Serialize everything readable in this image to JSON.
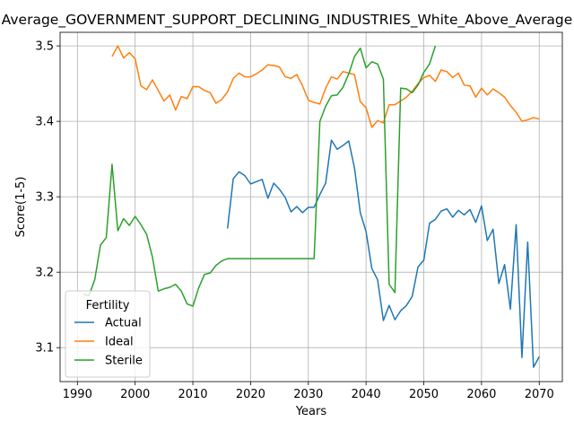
{
  "chart_data": {
    "type": "line",
    "title": "Average_GOVERNMENT_SUPPORT_DECLINING_INDUSTRIES_White_Above_Average",
    "xlabel": "Years",
    "ylabel": "Score(1-5)",
    "xlim": [
      1987,
      2074
    ],
    "ylim": [
      3.055,
      3.518
    ],
    "xticks": [
      1990,
      2000,
      2010,
      2020,
      2030,
      2040,
      2050,
      2060,
      2070
    ],
    "yticks": [
      3.1,
      3.2,
      3.3,
      3.4,
      3.5
    ],
    "grid": true,
    "legend": {
      "title": "Fertility",
      "placement": "lower-left"
    },
    "series": [
      {
        "name": "Actual",
        "color": "#1f77b4",
        "x": [
          2016,
          2017,
          2018,
          2019,
          2020,
          2021,
          2022,
          2023,
          2024,
          2025,
          2026,
          2027,
          2028,
          2029,
          2030,
          2031,
          2032,
          2033,
          2034,
          2035,
          2036,
          2037,
          2038,
          2039,
          2040,
          2041,
          2042,
          2043,
          2044,
          2045,
          2046,
          2047,
          2048,
          2049,
          2050,
          2051,
          2052,
          2053,
          2054,
          2055,
          2056,
          2057,
          2058,
          2059,
          2060,
          2061,
          2062,
          2063,
          2064,
          2065,
          2066,
          2067,
          2068,
          2069,
          2070
        ],
        "y": [
          3.258,
          3.324,
          3.333,
          3.328,
          3.317,
          3.32,
          3.323,
          3.298,
          3.318,
          3.31,
          3.299,
          3.28,
          3.287,
          3.279,
          3.286,
          3.286,
          3.303,
          3.318,
          3.375,
          3.363,
          3.368,
          3.374,
          3.338,
          3.279,
          3.254,
          3.205,
          3.19,
          3.136,
          3.156,
          3.137,
          3.149,
          3.156,
          3.168,
          3.207,
          3.216,
          3.265,
          3.27,
          3.281,
          3.284,
          3.273,
          3.282,
          3.276,
          3.283,
          3.266,
          3.288,
          3.242,
          3.257,
          3.185,
          3.21,
          3.151,
          3.263,
          3.087,
          3.24,
          3.074,
          3.088
        ]
      },
      {
        "name": "Ideal",
        "color": "#ff7f0e",
        "x": [
          1996,
          1997,
          1998,
          1999,
          2000,
          2001,
          2002,
          2003,
          2004,
          2005,
          2006,
          2007,
          2008,
          2009,
          2010,
          2011,
          2012,
          2013,
          2014,
          2015,
          2016,
          2017,
          2018,
          2019,
          2020,
          2021,
          2022,
          2023,
          2024,
          2025,
          2026,
          2027,
          2028,
          2029,
          2030,
          2031,
          2032,
          2033,
          2034,
          2035,
          2036,
          2037,
          2038,
          2039,
          2040,
          2041,
          2042,
          2043,
          2044,
          2045,
          2046,
          2047,
          2048,
          2049,
          2050,
          2051,
          2052,
          2053,
          2054,
          2055,
          2056,
          2057,
          2058,
          2059,
          2060,
          2061,
          2062,
          2063,
          2064,
          2065,
          2066,
          2067,
          2068,
          2069,
          2070
        ],
        "y": [
          3.486,
          3.5,
          3.484,
          3.491,
          3.483,
          3.447,
          3.442,
          3.455,
          3.441,
          3.427,
          3.435,
          3.415,
          3.433,
          3.43,
          3.446,
          3.446,
          3.441,
          3.438,
          3.424,
          3.429,
          3.439,
          3.457,
          3.464,
          3.459,
          3.459,
          3.463,
          3.468,
          3.475,
          3.474,
          3.472,
          3.459,
          3.457,
          3.462,
          3.447,
          3.428,
          3.425,
          3.423,
          3.444,
          3.459,
          3.456,
          3.466,
          3.464,
          3.462,
          3.426,
          3.418,
          3.392,
          3.401,
          3.398,
          3.422,
          3.422,
          3.427,
          3.432,
          3.44,
          3.45,
          3.458,
          3.461,
          3.453,
          3.468,
          3.466,
          3.458,
          3.464,
          3.448,
          3.447,
          3.432,
          3.444,
          3.435,
          3.443,
          3.438,
          3.432,
          3.421,
          3.412,
          3.4,
          3.402,
          3.405,
          3.403
        ]
      },
      {
        "name": "Sterile",
        "color": "#2ca02c",
        "x": [
          1991,
          1992,
          1993,
          1994,
          1995,
          1996,
          1997,
          1998,
          1999,
          2000,
          2001,
          2002,
          2003,
          2004,
          2005,
          2006,
          2007,
          2008,
          2009,
          2010,
          2011,
          2012,
          2013,
          2014,
          2015,
          2016,
          2017,
          2018,
          2019,
          2020,
          2021,
          2022,
          2023,
          2024,
          2025,
          2026,
          2027,
          2028,
          2029,
          2030,
          2031,
          2032,
          2033,
          2034,
          2035,
          2036,
          2037,
          2038,
          2039,
          2040,
          2041,
          2042,
          2043,
          2044,
          2045,
          2046,
          2047,
          2048,
          2049,
          2050,
          2051,
          2052
        ],
        "y": [
          3.171,
          3.169,
          3.19,
          3.236,
          3.246,
          3.343,
          3.255,
          3.271,
          3.262,
          3.274,
          3.263,
          3.25,
          3.22,
          3.175,
          3.178,
          3.18,
          3.184,
          3.175,
          3.158,
          3.155,
          3.179,
          3.197,
          3.199,
          3.209,
          3.215,
          3.218,
          3.218,
          3.218,
          3.218,
          3.218,
          3.218,
          3.218,
          3.218,
          3.218,
          3.218,
          3.218,
          3.218,
          3.218,
          3.218,
          3.218,
          3.218,
          3.4,
          3.42,
          3.434,
          3.435,
          3.445,
          3.463,
          3.486,
          3.497,
          3.471,
          3.479,
          3.476,
          3.456,
          3.184,
          3.173,
          3.444,
          3.443,
          3.438,
          3.448,
          3.465,
          3.476,
          3.5
        ]
      }
    ]
  }
}
